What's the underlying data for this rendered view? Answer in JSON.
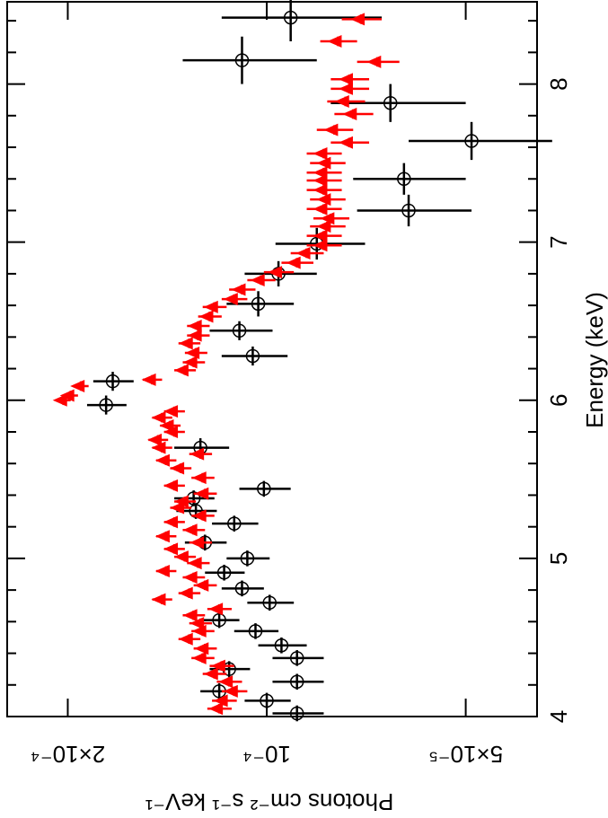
{
  "chart_data": {
    "type": "scatter",
    "x_label": "Energy (keV)",
    "y_label": "Photons cm⁻² s⁻¹ keV⁻¹",
    "xlim": [
      4,
      8.52
    ],
    "xticks": [
      4,
      5,
      6,
      7,
      8
    ],
    "xminorticks": [
      4.2,
      4.4,
      4.6,
      4.8,
      5.2,
      5.4,
      5.6,
      5.8,
      6.2,
      6.4,
      6.6,
      6.8,
      7.2,
      7.4,
      7.6,
      7.8,
      8.2,
      8.4
    ],
    "ylim": [
      0.000247,
      3.9e-05
    ],
    "ylog": true,
    "yticks": [
      {
        "value": 0.0002,
        "label": "2×10⁻⁴"
      },
      {
        "value": 0.0001,
        "label": "10⁻⁴"
      },
      {
        "value": 5e-05,
        "label": "5×10⁻⁵"
      }
    ],
    "rotation": -90,
    "series": [
      {
        "color": "#000000",
        "marker": "circle",
        "x": [
          4.02,
          4.1,
          4.16,
          4.22,
          4.3,
          4.37,
          4.45,
          4.54,
          4.61,
          4.72,
          4.81,
          4.91,
          5.0,
          5.1,
          5.22,
          5.3,
          5.38,
          5.44,
          5.7,
          5.97,
          6.12,
          6.28,
          6.44,
          6.61,
          6.8,
          6.99,
          7.2,
          7.4,
          7.64,
          7.88,
          8.15,
          8.42
        ],
        "values": [
          9e-05,
          0.0001,
          0.000118,
          9e-05,
          0.000114,
          9e-05,
          9.5e-05,
          0.000104,
          0.000118,
          9.9e-05,
          0.000109,
          0.000116,
          0.000107,
          0.000124,
          0.000112,
          0.000128,
          0.000129,
          0.000101,
          0.000126,
          0.000175,
          0.000171,
          0.000105,
          0.00011,
          0.000103,
          9.6e-05,
          8.4e-05,
          6.1e-05,
          6.2e-05,
          4.9e-05,
          6.5e-05,
          0.000109,
          9.2e-05
        ],
        "xerr": [
          0.05,
          0.05,
          0.05,
          0.05,
          0.05,
          0.05,
          0.05,
          0.05,
          0.05,
          0.05,
          0.05,
          0.05,
          0.05,
          0.05,
          0.05,
          0.05,
          0.05,
          0.05,
          0.06,
          0.06,
          0.06,
          0.06,
          0.06,
          0.08,
          0.08,
          0.1,
          0.1,
          0.1,
          0.12,
          0.12,
          0.15,
          0.15
        ],
        "yerr": [
          8e-06,
          8e-06,
          8e-06,
          8e-06,
          8e-06,
          8e-06,
          8e-06,
          8e-06,
          8e-06,
          8e-06,
          8e-06,
          8e-06,
          8e-06,
          9e-06,
          9e-06,
          9e-06,
          9e-06,
          9e-06,
          1.2e-05,
          1.2e-05,
          1.2e-05,
          1.2e-05,
          1.2e-05,
          1.2e-05,
          1.2e-05,
          1.3e-05,
          1.2e-05,
          1.2e-05,
          1.2e-05,
          1.5e-05,
          2.5e-05,
          2.5e-05
        ]
      },
      {
        "color": "#ff0000",
        "marker": "triangle",
        "x": [
          4.05,
          4.1,
          4.16,
          4.22,
          4.27,
          4.32,
          4.37,
          4.43,
          4.49,
          4.54,
          4.59,
          4.64,
          4.68,
          4.74,
          4.78,
          4.83,
          4.88,
          4.92,
          4.97,
          5.01,
          5.06,
          5.1,
          5.14,
          5.18,
          5.23,
          5.27,
          5.32,
          5.36,
          5.41,
          5.46,
          5.51,
          5.57,
          5.62,
          5.66,
          5.7,
          5.75,
          5.8,
          5.84,
          5.89,
          5.93,
          6.0,
          6.03,
          6.09,
          6.13,
          6.19,
          6.24,
          6.3,
          6.36,
          6.41,
          6.47,
          6.53,
          6.59,
          6.64,
          6.7,
          6.76,
          6.81,
          6.87,
          6.93,
          6.98,
          7.04,
          7.1,
          7.15,
          7.21,
          7.27,
          7.33,
          7.39,
          7.44,
          7.5,
          7.56,
          7.63,
          7.71,
          7.81,
          7.89,
          7.97,
          8.03,
          8.14,
          8.27,
          8.41
        ],
        "values": [
          0.000118,
          0.000116,
          0.000112,
          0.000114,
          0.00012,
          0.000117,
          0.000125,
          0.000124,
          0.000131,
          0.000125,
          0.000126,
          0.000129,
          0.000118,
          0.000144,
          0.000131,
          0.000124,
          0.000129,
          0.000142,
          0.000127,
          0.000133,
          0.000138,
          0.000126,
          0.000142,
          0.000129,
          0.000138,
          0.000125,
          0.000135,
          0.000133,
          0.000124,
          0.000138,
          0.000125,
          0.000135,
          0.000142,
          0.000126,
          0.000144,
          0.000146,
          0.000138,
          0.00014,
          0.000144,
          0.000138,
          0.000203,
          0.000198,
          0.000191,
          0.000149,
          0.000133,
          0.000129,
          0.000128,
          0.000131,
          0.000127,
          0.000127,
          0.000122,
          0.00012,
          0.000112,
          0.000109,
          0.000102,
          9.6e-05,
          9e-05,
          8.7e-05,
          8.2e-05,
          8.2e-05,
          8.1e-05,
          8e-05,
          8.2e-05,
          8.1e-05,
          8.2e-05,
          8.2e-05,
          8.2e-05,
          8.1e-05,
          8.2e-05,
          7.5e-05,
          7.9e-05,
          7.4e-05,
          7.6e-05,
          7.5e-05,
          7.5e-05,
          6.8e-05,
          7.8e-05,
          7.2e-05
        ],
        "xerr": 0.03,
        "yerr": 5e-06
      }
    ]
  }
}
